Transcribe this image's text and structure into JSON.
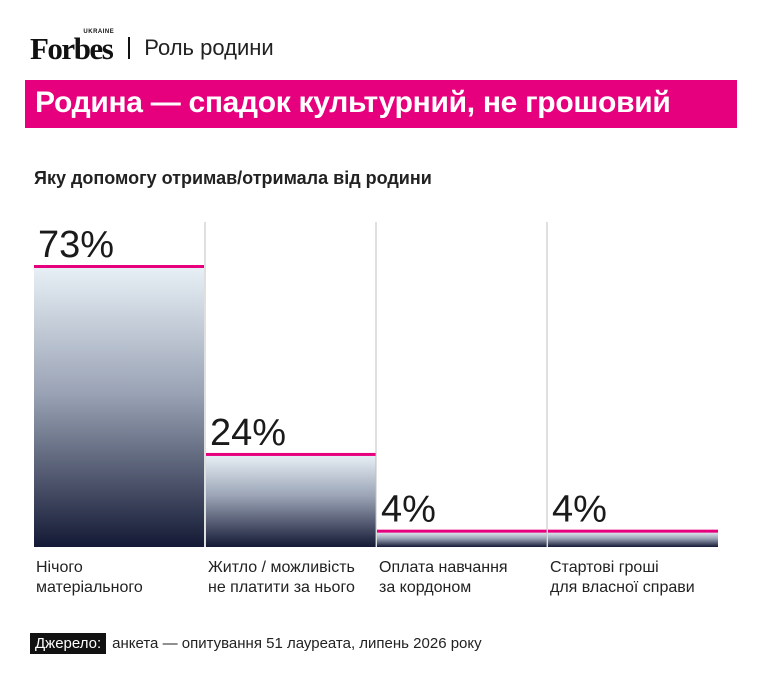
{
  "brand": {
    "logo": "Forbes",
    "edition": "UKRAINE",
    "section": "Роль родини"
  },
  "title": "Родина — спадок культурний, не грошовий",
  "subtitle": "Яку допомогу отримав/отримала від родини",
  "source": {
    "label": "Джерело:",
    "text": "анкета — опитування 51 лауреата, липень 2026 року"
  },
  "colors": {
    "accent": "#e6007e",
    "bar_top": "#e8f0f6",
    "bar_bottom": "#141a35",
    "text": "#1a1a1a"
  },
  "chart_data": {
    "type": "bar",
    "categories": [
      [
        "Нічого",
        "матеріального"
      ],
      [
        "Житло / можливість",
        "не платити за нього"
      ],
      [
        "Оплата навчання",
        "за кордоном"
      ],
      [
        "Стартові гроші",
        "для власної справи"
      ]
    ],
    "values": [
      73,
      24,
      4,
      4
    ],
    "value_labels": [
      "73%",
      "24%",
      "4%",
      "4%"
    ],
    "unit": "%",
    "ylim": [
      0,
      73
    ],
    "grid": false,
    "legend": "none"
  }
}
